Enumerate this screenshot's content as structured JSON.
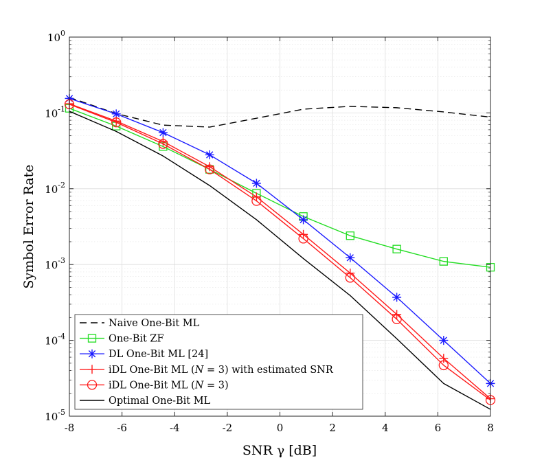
{
  "chart_data": {
    "type": "line",
    "title": "",
    "xlabel": "SNR γ [dB]",
    "ylabel": "Symbol Error Rate",
    "xlim": [
      -8,
      8
    ],
    "ylim": [
      1e-05,
      1
    ],
    "yscale": "log",
    "grid": true,
    "legend_position": "bottom-left",
    "x_ticks": [
      -8,
      -6,
      -4,
      -2,
      0,
      2,
      4,
      6,
      8
    ],
    "x_tick_labels": [
      "-8",
      "-6",
      "-4",
      "-2",
      "0",
      "2",
      "4",
      "6",
      "8"
    ],
    "y_ticks": [
      1e-05,
      0.0001,
      0.001,
      0.01,
      0.1,
      1
    ],
    "y_tick_labels": [
      {
        "base": "10",
        "exp": "-5"
      },
      {
        "base": "10",
        "exp": "-4"
      },
      {
        "base": "10",
        "exp": "-3"
      },
      {
        "base": "10",
        "exp": "-2"
      },
      {
        "base": "10",
        "exp": "-1"
      },
      {
        "base": "10",
        "exp": "0"
      }
    ],
    "series": [
      {
        "name": "Naive One-Bit ML",
        "legend": [
          {
            "t": "Naive One-Bit ML"
          }
        ],
        "color": "#000000",
        "dash": "10,6",
        "marker": "none",
        "stroke_width": 1.4,
        "x": [
          -8,
          -6.22,
          -4.44,
          -2.67,
          -0.89,
          0.89,
          2.67,
          4.44,
          6.22,
          8
        ],
        "values": [
          0.16,
          0.098,
          0.069,
          0.065,
          0.085,
          0.112,
          0.122,
          0.117,
          0.103,
          0.088
        ]
      },
      {
        "name": "One-Bit ZF",
        "legend": [
          {
            "t": "One-Bit ZF"
          }
        ],
        "color": "#22dd22",
        "dash": "",
        "marker": "square",
        "stroke_width": 1.4,
        "x": [
          -8,
          -6.22,
          -4.44,
          -2.67,
          -0.89,
          0.89,
          2.67,
          4.44,
          6.22,
          8
        ],
        "values": [
          0.115,
          0.067,
          0.036,
          0.018,
          0.0087,
          0.0043,
          0.0024,
          0.0016,
          0.0011,
          0.00092
        ]
      },
      {
        "name": "DL One-Bit ML [24]",
        "legend": [
          {
            "t": "DL One-Bit ML [24]"
          }
        ],
        "color": "#1a1aff",
        "dash": "",
        "marker": "asterisk",
        "stroke_width": 1.4,
        "x": [
          -8,
          -6.22,
          -4.44,
          -2.67,
          -0.89,
          0.89,
          2.67,
          4.44,
          6.22,
          8
        ],
        "values": [
          0.155,
          0.097,
          0.055,
          0.028,
          0.0118,
          0.0039,
          0.00123,
          0.00037,
          0.0001,
          2.7e-05
        ]
      },
      {
        "name": "iDL One-Bit ML (N = 3) with estimated SNR",
        "legend": [
          {
            "t": "iDL One-Bit ML ("
          },
          {
            "t": "N",
            "i": true
          },
          {
            "t": " = 3) with estimated SNR"
          }
        ],
        "color": "#ff1a1a",
        "dash": "",
        "marker": "plus",
        "stroke_width": 1.4,
        "x": [
          -8,
          -6.22,
          -4.44,
          -2.67,
          -0.89,
          0.89,
          2.67,
          4.44,
          6.22,
          8
        ],
        "values": [
          0.132,
          0.078,
          0.042,
          0.0195,
          0.0078,
          0.0025,
          0.00077,
          0.00022,
          5.8e-05,
          1.7e-05
        ]
      },
      {
        "name": "iDL One-Bit ML (N = 3)",
        "legend": [
          {
            "t": "iDL One-Bit ML ("
          },
          {
            "t": "N",
            "i": true
          },
          {
            "t": " = 3)"
          }
        ],
        "color": "#ff1a1a",
        "dash": "",
        "marker": "circle",
        "stroke_width": 1.4,
        "x": [
          -8,
          -6.22,
          -4.44,
          -2.67,
          -0.89,
          0.89,
          2.67,
          4.44,
          6.22,
          8
        ],
        "values": [
          0.13,
          0.075,
          0.039,
          0.018,
          0.0069,
          0.0022,
          0.00067,
          0.00019,
          4.7e-05,
          1.63e-05
        ]
      },
      {
        "name": "Optimal One-Bit ML",
        "legend": [
          {
            "t": "Optimal One-Bit ML"
          }
        ],
        "color": "#000000",
        "dash": "",
        "marker": "none",
        "stroke_width": 1.4,
        "x": [
          -8,
          -6.22,
          -4.44,
          -2.67,
          -0.89,
          0.89,
          2.67,
          4.44,
          6.22,
          8
        ],
        "values": [
          0.105,
          0.057,
          0.027,
          0.011,
          0.0039,
          0.0012,
          0.00039,
          0.000105,
          2.7e-05,
          1.23e-05
        ]
      }
    ]
  }
}
